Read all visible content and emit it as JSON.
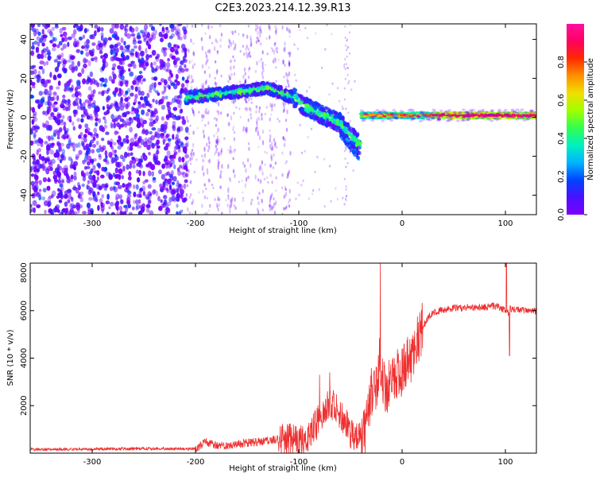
{
  "figure_title": "C2E3.2023.214.12.39.R13",
  "colors": {
    "snr_line": "#ee3030",
    "axes": "#000000",
    "colorbar_stops": [
      "#7f00ff",
      "#4a10ff",
      "#0044ff",
      "#00b4ff",
      "#00f0c0",
      "#30ff50",
      "#a0ff00",
      "#f0e000",
      "#ff9000",
      "#ff2a00",
      "#ff0060",
      "#ff10a0"
    ]
  },
  "chart_data": [
    {
      "type": "heatmap",
      "title": "",
      "xlabel": "Height of straight line (km)",
      "ylabel": "Frequency (Hz)",
      "xlim": [
        -360,
        130
      ],
      "ylim": [
        -50,
        48
      ],
      "xticks": [
        -300,
        -200,
        -100,
        0,
        100
      ],
      "yticks": [
        -40,
        -20,
        0,
        20,
        40
      ],
      "colorbar": {
        "label": "Normalized spectral amplitude",
        "range": [
          0,
          1
        ],
        "ticks": [
          0.0,
          0.2,
          0.4,
          0.6,
          0.8
        ],
        "colormap": "rainbow"
      },
      "regions": [
        {
          "x_range": [
            -360,
            -208
          ],
          "y_range": [
            -50,
            48
          ],
          "amplitude": "0.0-0.2",
          "pattern": "dense scattered noise"
        },
        {
          "x_range": [
            -205,
            -110
          ],
          "y_range": [
            -50,
            48
          ],
          "amplitude": "0.0-0.05",
          "pattern": "sparse faint noise"
        },
        {
          "x_range": [
            -210,
            -40
          ],
          "y_center": [
            8,
            12,
            15,
            5,
            -2,
            -14
          ],
          "amplitude": "0.2-0.5",
          "pattern": "curved signal band"
        },
        {
          "x_range": [
            -40,
            130
          ],
          "y_center": [
            0,
            2
          ],
          "amplitude": "0.5-1.0",
          "pattern": "narrow stable signal line"
        }
      ]
    },
    {
      "type": "line",
      "title": "",
      "xlabel": "Height of straight line (km)",
      "ylabel": "SNR (10 * v/v)",
      "xlim": [
        -360,
        130
      ],
      "ylim": [
        0,
        8000
      ],
      "xticks": [
        -300,
        -200,
        -100,
        0,
        100
      ],
      "yticks": [
        2000,
        4000,
        6000,
        8000
      ],
      "series": [
        {
          "x": [
            -360,
            -300,
            -250,
            -200,
            -190,
            -180,
            -160,
            -140,
            -120,
            -100,
            -90,
            -80,
            -70,
            -60,
            -50,
            -45,
            -40,
            -35,
            -30,
            -25,
            -22,
            -20,
            -18,
            -15,
            -10,
            -5,
            0,
            5,
            10,
            15,
            20,
            25,
            30,
            40,
            50,
            60,
            70,
            80,
            90,
            100,
            103,
            105,
            110,
            120,
            130
          ],
          "y": [
            160,
            170,
            190,
            180,
            480,
            330,
            380,
            480,
            600,
            500,
            800,
            1400,
            2200,
            1600,
            900,
            700,
            600,
            1100,
            2500,
            2900,
            3800,
            3500,
            2800,
            2700,
            3100,
            3300,
            3500,
            3800,
            4100,
            4700,
            5300,
            5700,
            5900,
            6050,
            6100,
            6120,
            6150,
            6130,
            6200,
            6000,
            5900,
            6100,
            6050,
            6000,
            5980
          ],
          "spikes": [
            {
              "x": -80,
              "y": 3300
            },
            {
              "x": -70,
              "y": 3400
            },
            {
              "x": -21,
              "y": 8100
            },
            {
              "x": 101,
              "y": 8300
            },
            {
              "x": 104,
              "y": 4100
            }
          ]
        }
      ]
    }
  ]
}
